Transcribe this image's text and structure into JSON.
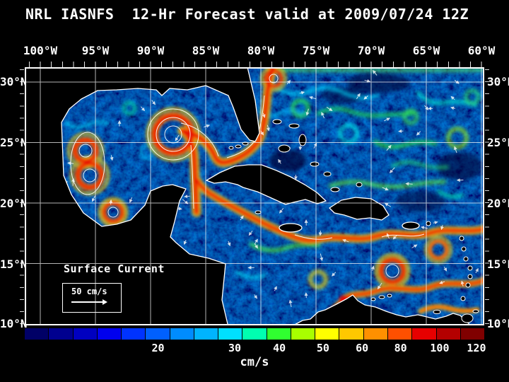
{
  "title": "NRL IASNFS  12-Hr Forecast valid at 2009/07/24 12Z",
  "axes": {
    "lon_labels": [
      "100°W",
      "95°W",
      "90°W",
      "85°W",
      "80°W",
      "75°W",
      "70°W",
      "65°W",
      "60°W"
    ],
    "lat_labels": [
      "30°N",
      "25°N",
      "20°N",
      "15°N",
      "10°N"
    ]
  },
  "legend": {
    "field_label": "Surface Current",
    "scale_value": "50 cm/s"
  },
  "colorbar": {
    "unit": "cm/s",
    "tick_labels": [
      "20",
      "30",
      "40",
      "50",
      "60",
      "80",
      "100",
      "120"
    ],
    "tick_positions_pct": [
      29,
      45.7,
      55.4,
      64.9,
      73.4,
      81.8,
      90.3,
      98.3
    ],
    "colors": [
      "#000066",
      "#00008f",
      "#0000c0",
      "#0000ee",
      "#0033ff",
      "#0060ff",
      "#008cff",
      "#00b4ff",
      "#00e0ff",
      "#00ffb0",
      "#30ff30",
      "#a8ff00",
      "#ffff00",
      "#ffc800",
      "#ff9000",
      "#ff5000",
      "#e60000",
      "#b40000",
      "#800000"
    ]
  }
}
